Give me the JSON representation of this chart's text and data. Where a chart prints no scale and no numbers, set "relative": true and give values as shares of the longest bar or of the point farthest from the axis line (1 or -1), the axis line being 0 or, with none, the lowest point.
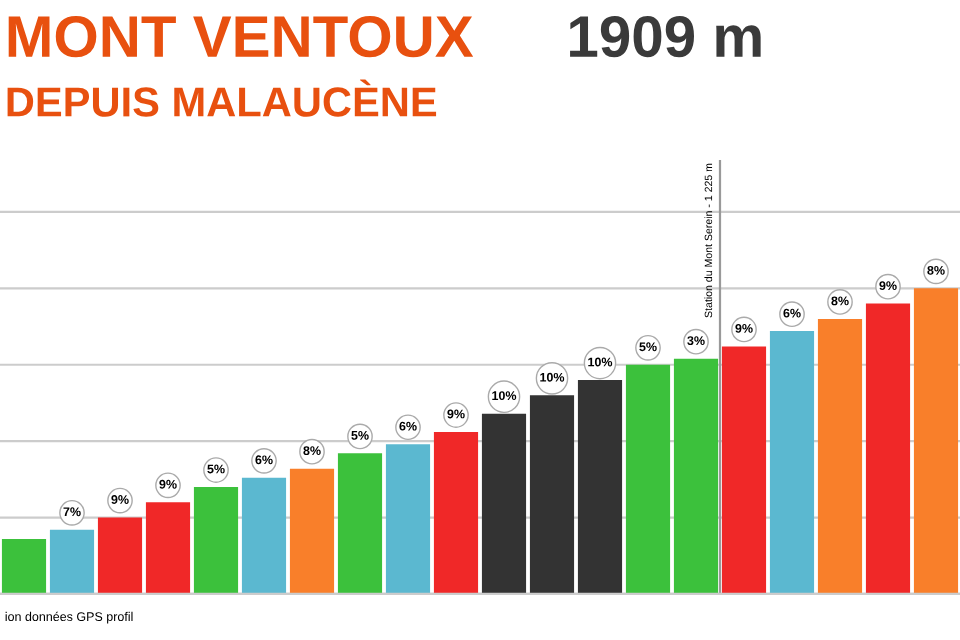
{
  "chart_data": {
    "type": "bar",
    "title": "MONT VENTOUX",
    "subtitle": "DEPUIS MALAUCÈNE",
    "annotations": [
      "1909 m",
      "ion données GPS profil",
      "Station du Mont Serein - 1 225 m",
      "7%",
      "9%",
      "9%",
      "5%",
      "6%",
      "8%",
      "5%",
      "6%",
      "9%",
      "10%",
      "10%",
      "10%",
      "5%",
      "3%",
      "9%",
      "6%",
      "8%",
      "9%",
      "8%"
    ],
    "relative": true,
    "grid": "y",
    "categories": [
      null,
      null,
      null,
      null,
      null,
      null,
      null,
      null,
      null,
      null,
      null,
      null,
      null,
      null,
      null,
      null,
      null,
      null,
      null,
      null
    ],
    "colors": [
      "#3cc13c",
      "#5bb8d0",
      "#f02828",
      "#f02828",
      "#3cc13c",
      "#5bb8d0",
      "#f97f2a",
      "#3cc13c",
      "#5bb8d0",
      "#f02828",
      "#333333",
      "#333333",
      "#333333",
      "#3cc13c",
      "#3cc13c",
      "#f02828",
      "#5bb8d0",
      "#f97f2a",
      "#f02828",
      "#f97f2a"
    ],
    "values": [
      0.18,
      0.21,
      0.25,
      0.3,
      0.35,
      0.38,
      0.41,
      0.46,
      0.49,
      0.53,
      0.59,
      0.65,
      0.7,
      0.75,
      0.77,
      0.81,
      0.86,
      0.9,
      0.95,
      1.0
    ]
  }
}
